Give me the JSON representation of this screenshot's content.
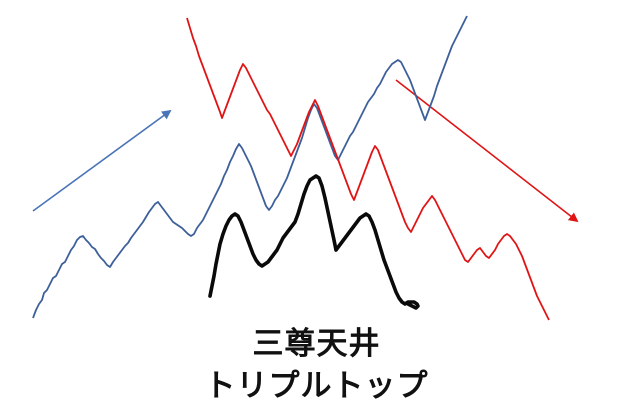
{
  "caption": {
    "line1": "三尊天井",
    "line2": "トリプルトップ"
  },
  "colors": {
    "blue": "#3d5f9a",
    "red": "#e01414",
    "black": "#0a0a0a",
    "arrow_blue": "#4a74b8",
    "arrow_red": "#e01414"
  }
}
